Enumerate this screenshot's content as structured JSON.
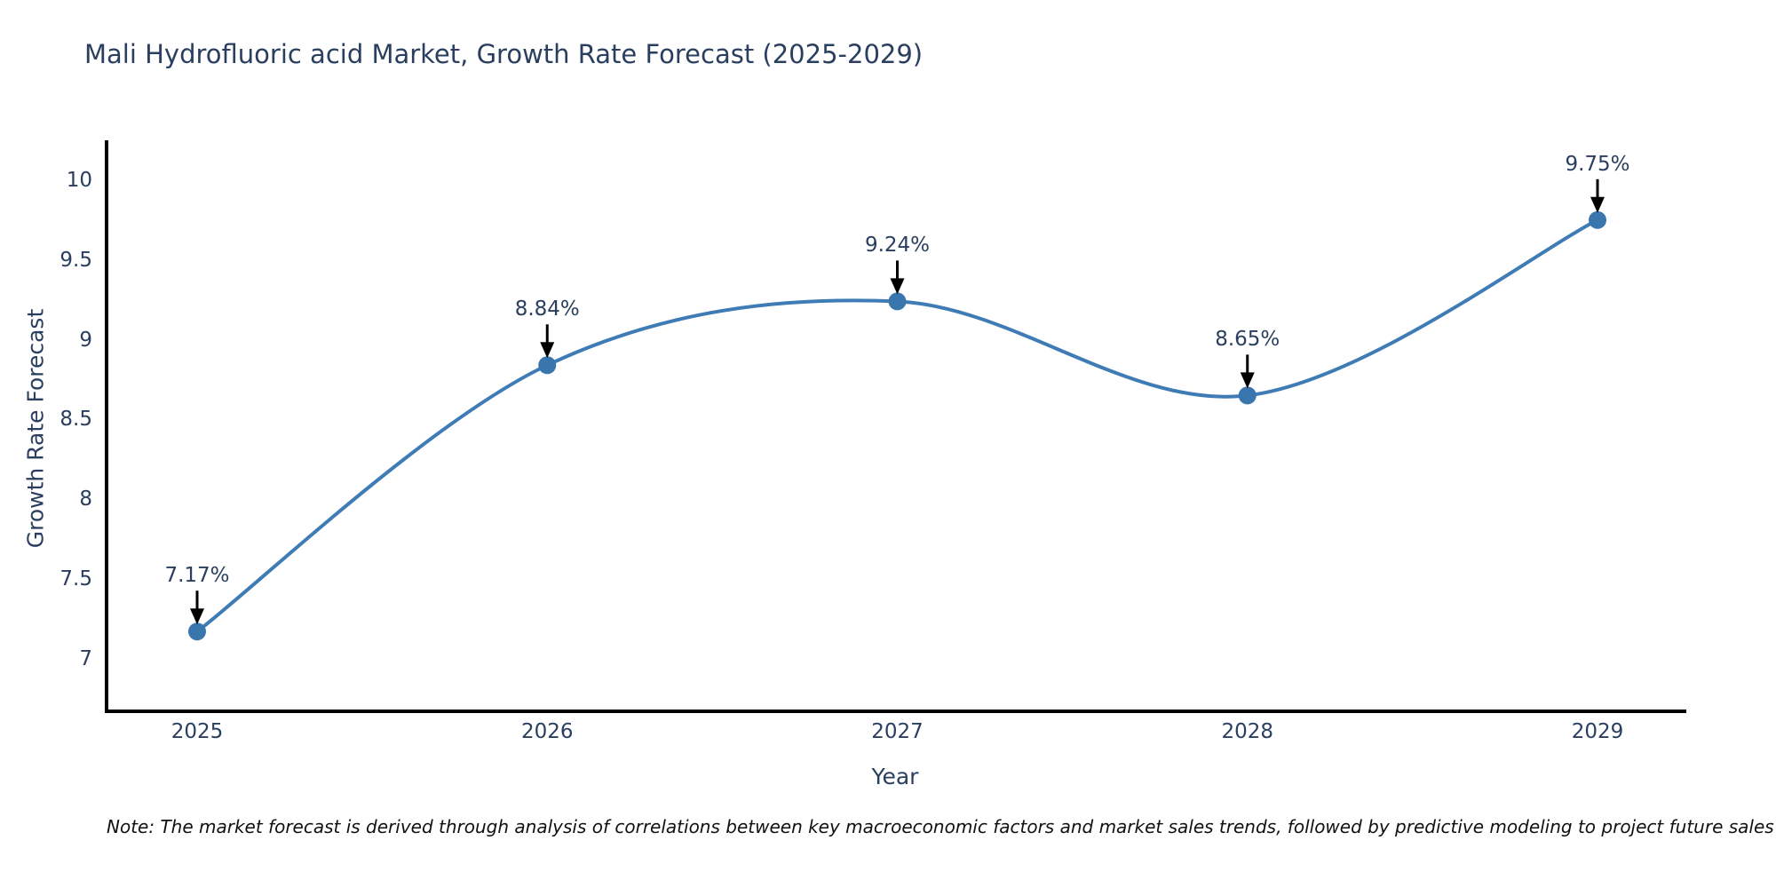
{
  "title": "Mali Hydrofluoric acid Market, Growth Rate Forecast (2025-2029)",
  "note": "Note: The market forecast is derived through analysis of correlations between key macroeconomic factors and market sales trends, followed by predictive modeling to project future sales",
  "chart_data": {
    "type": "line",
    "title": "Mali Hydrofluoric acid Market, Growth Rate Forecast (2025-2029)",
    "xlabel": "Year",
    "ylabel": "Growth Rate Forecast",
    "categories": [
      "2025",
      "2026",
      "2027",
      "2028",
      "2029"
    ],
    "series": [
      {
        "name": "Growth Rate Forecast",
        "values": [
          7.17,
          8.84,
          9.24,
          8.65,
          9.75
        ],
        "point_labels": [
          "7.17%",
          "8.84%",
          "9.24%",
          "8.65%",
          "9.75%"
        ]
      }
    ],
    "yticks": [
      7,
      7.5,
      8,
      8.5,
      9,
      9.5,
      10
    ],
    "ylim": [
      6.67,
      10.25
    ],
    "grid": false,
    "legend": "none",
    "line_shape": "spline",
    "annotations_style": "value labels with downward black arrows onto each point",
    "colors": {
      "line": "#3f7cb6",
      "marker": "#3a76ae",
      "axis": "#000000",
      "text": "#2a3f5f",
      "note": "#111111",
      "arrow": "#000000",
      "background": "#ffffff"
    }
  }
}
